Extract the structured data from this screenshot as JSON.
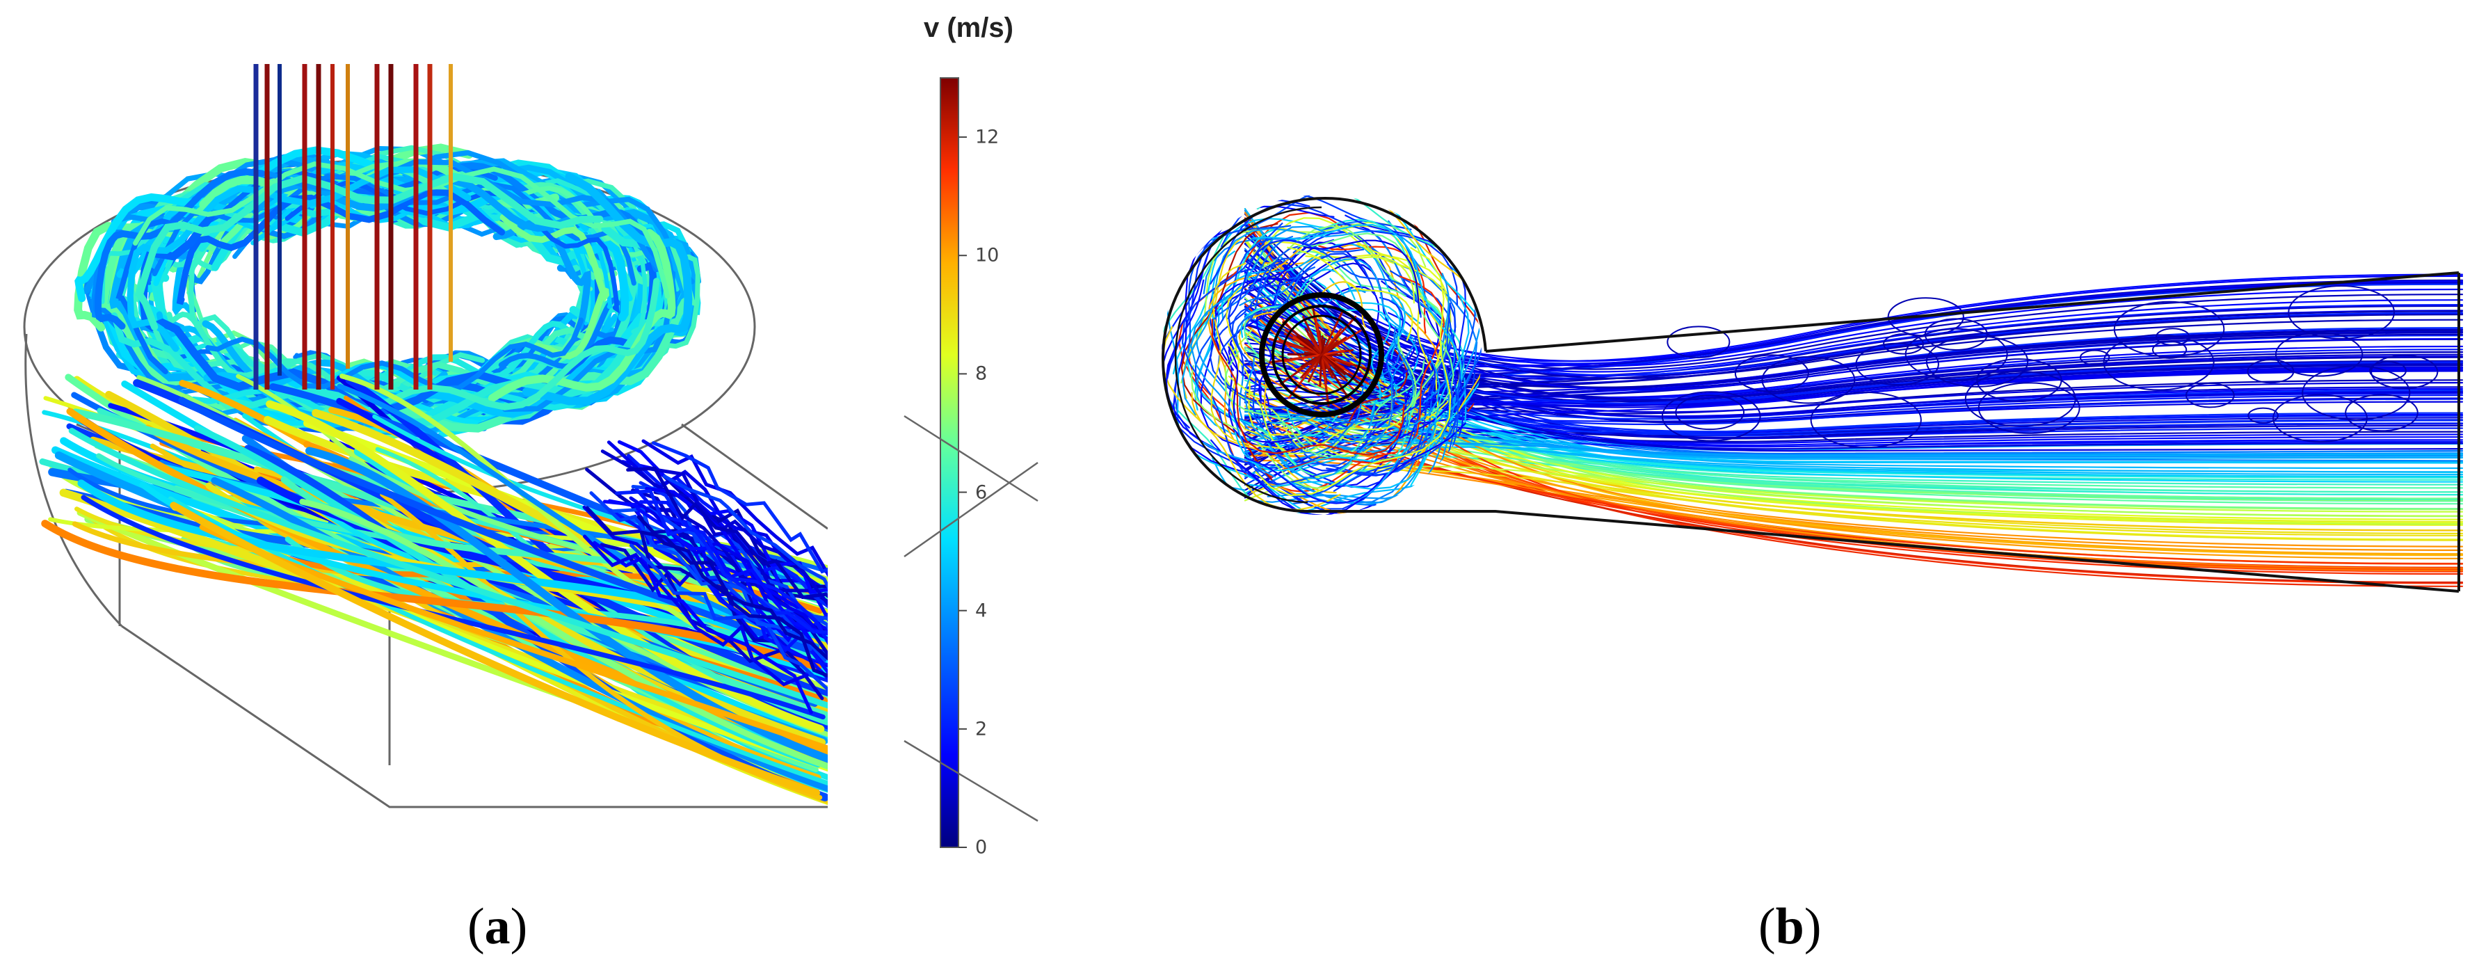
{
  "panel_a": {
    "caption_open": "(",
    "caption_letter": "a",
    "caption_close": ")"
  },
  "panel_b": {
    "caption_open": "(",
    "caption_letter": "b",
    "caption_close": ")"
  },
  "colorbar": {
    "title": "v (m/s)",
    "min": 0,
    "max": 13,
    "ticks": [
      {
        "value": 0,
        "label": "0"
      },
      {
        "value": 2,
        "label": "2"
      },
      {
        "value": 4,
        "label": "4"
      },
      {
        "value": 6,
        "label": "6"
      },
      {
        "value": 8,
        "label": "8"
      },
      {
        "value": 10,
        "label": "10"
      },
      {
        "value": 12,
        "label": "12"
      }
    ],
    "colormap": [
      "#00007f",
      "#0000ff",
      "#0080ff",
      "#00e0ff",
      "#60ffa0",
      "#e0ff20",
      "#ffb000",
      "#ff3000",
      "#7f0000"
    ]
  }
}
